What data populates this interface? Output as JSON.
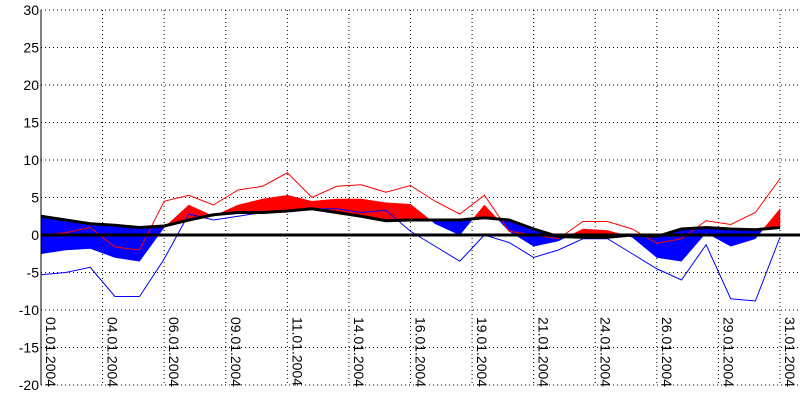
{
  "chart_data": {
    "type": "area",
    "title": "",
    "xlabel": "",
    "ylabel": "",
    "x_range": [
      "01.01.2004",
      "31.01.2004"
    ],
    "ylim": [
      -20,
      30
    ],
    "y_ticks": [
      "30",
      "25",
      "20",
      "15",
      "10",
      "5",
      "0",
      "-5",
      "-10",
      "-15",
      "-20"
    ],
    "x_tick_labels": [
      "01.01.2004",
      "04.01.2004",
      "06.01.2004",
      "09.01.2004",
      "11.01.2004",
      "14.01.2004",
      "16.01.2004",
      "19.01.2004",
      "21.01.2004",
      "24.01.2004",
      "26.01.2004",
      "29.01.2004",
      "31.01.2004"
    ],
    "grid": true,
    "colors": {
      "above": "#ff0000",
      "below": "#0000ff",
      "reference": "#000000",
      "zero": "#000000",
      "grid": "#000000"
    },
    "series": [
      {
        "role": "thin-red-upper",
        "values": [
          0.0,
          0.3,
          1.0,
          -1.6,
          -2.0,
          4.5,
          5.3,
          4.0,
          6.0,
          6.5,
          8.3,
          5.0,
          6.5,
          6.7,
          5.7,
          6.6,
          4.5,
          2.8,
          5.3,
          0.5,
          0.0,
          -0.5,
          1.8,
          1.8,
          0.8,
          -1.1,
          -0.5,
          1.9,
          1.4,
          3.0,
          7.5
        ]
      },
      {
        "role": "thick-red-blue-series",
        "values": [
          -2.5,
          -2.0,
          -1.8,
          -3.0,
          -3.5,
          1.0,
          4.0,
          2.5,
          4.0,
          4.8,
          5.3,
          4.5,
          4.8,
          4.8,
          4.3,
          4.1,
          1.5,
          0.0,
          4.0,
          0.5,
          -1.5,
          -0.8,
          0.8,
          0.6,
          -0.3,
          -3.0,
          -3.5,
          0.3,
          -1.5,
          -0.5,
          3.5
        ]
      },
      {
        "role": "thin-blue-lower",
        "values": [
          -5.3,
          -5.0,
          -4.3,
          -8.2,
          -8.2,
          -3.2,
          2.8,
          2.0,
          2.5,
          3.0,
          3.3,
          3.5,
          3.5,
          3.0,
          3.3,
          0.5,
          -1.5,
          -3.5,
          0.0,
          -1.0,
          -3.0,
          -2.0,
          -0.5,
          -0.5,
          -2.5,
          -4.5,
          -6.0,
          -1.3,
          -8.5,
          -8.8,
          -0.3
        ]
      },
      {
        "role": "black-reference",
        "values": [
          2.5,
          2.0,
          1.5,
          1.3,
          1.0,
          1.2,
          2.0,
          2.7,
          3.0,
          3.0,
          3.2,
          3.5,
          3.0,
          2.5,
          1.9,
          2.0,
          2.0,
          2.0,
          2.3,
          2.0,
          0.8,
          -0.2,
          -0.3,
          -0.3,
          0.0,
          -0.2,
          0.8,
          1.0,
          0.8,
          0.7,
          1.0
        ]
      }
    ]
  }
}
